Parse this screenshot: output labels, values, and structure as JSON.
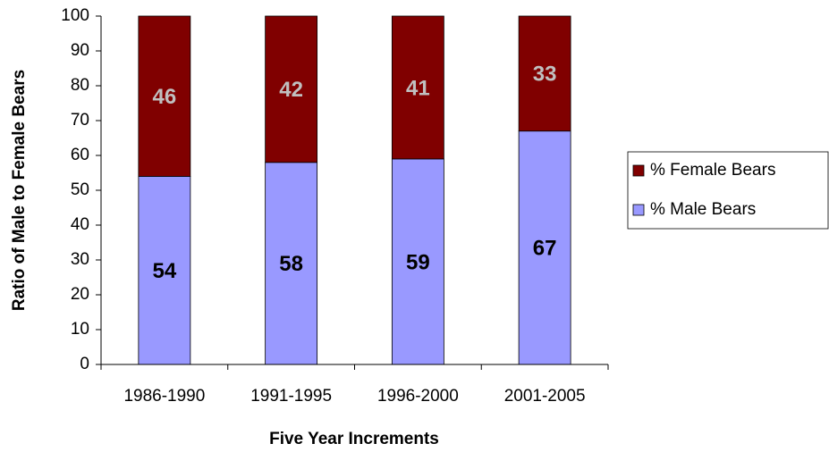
{
  "chart_data": {
    "type": "stacked_bar",
    "x_label": "Five Year Increments",
    "y_label": "Ratio of Male to Female Bears",
    "categories": [
      "1986-1990",
      "1991-1995",
      "1996-2000",
      "2001-2005"
    ],
    "series": [
      {
        "name": "% Male Bears",
        "color": "#9999ff",
        "label_color": "#000000",
        "values": [
          54,
          58,
          59,
          67
        ]
      },
      {
        "name": "% Female Bears",
        "color": "#800000",
        "label_color": "#c0c0c0",
        "values": [
          46,
          42,
          41,
          33
        ]
      }
    ],
    "ylim": [
      0,
      100
    ],
    "yticks": [
      0,
      10,
      20,
      30,
      40,
      50,
      60,
      70,
      80,
      90,
      100
    ],
    "legend": "right"
  }
}
